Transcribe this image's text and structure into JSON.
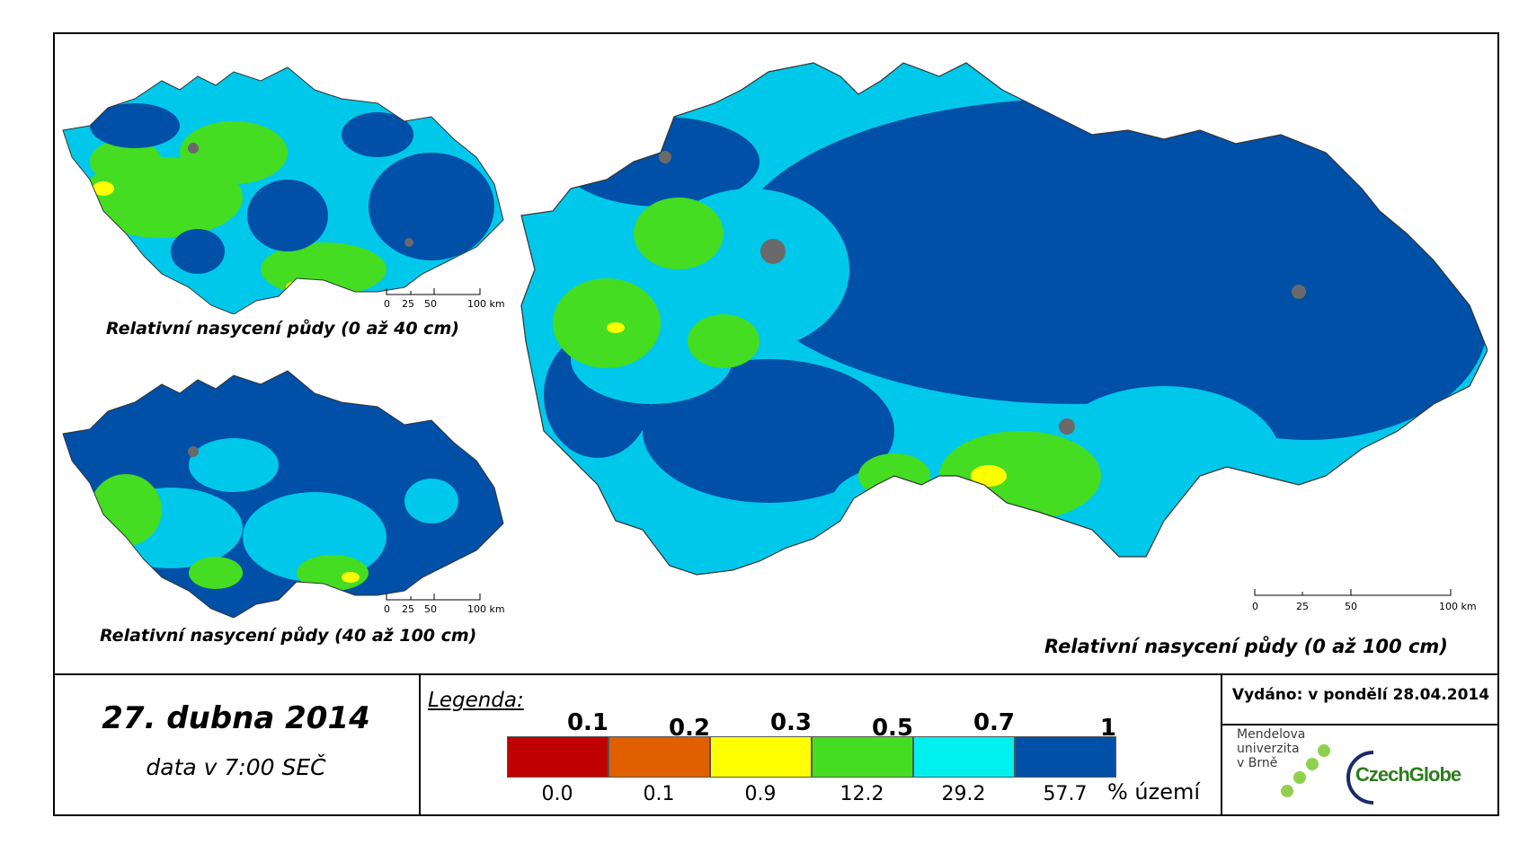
{
  "maps": {
    "small_top": {
      "title": "Relativní nasycení půdy (0 až 40 cm)",
      "scale": [
        "0",
        "25",
        "50",
        "100 km"
      ]
    },
    "small_bottom": {
      "title": "Relativní nasycení půdy (40 až 100 cm)",
      "scale": [
        "0",
        "25",
        "50",
        "100 km"
      ]
    },
    "large": {
      "title": "Relativní nasycení půdy (0 až 100 cm)",
      "scale": [
        "0",
        "25",
        "50",
        "100 km"
      ]
    }
  },
  "date": {
    "main": "27. dubna 2014",
    "sub": "data v 7:00 SEČ"
  },
  "legend": {
    "title": "Legenda:",
    "thresholds": [
      "0.1",
      "0.2",
      "0.3",
      "0.5",
      "0.7",
      "1"
    ],
    "classes": [
      {
        "color": "#c00000",
        "percent": "0.0"
      },
      {
        "color": "#e06000",
        "percent": "0.1"
      },
      {
        "color": "#ffff00",
        "percent": "0.9"
      },
      {
        "color": "#44dd22",
        "percent": "12.2"
      },
      {
        "color": "#00f0f0",
        "percent": "29.2"
      },
      {
        "color": "#0050a8",
        "percent": "57.7"
      }
    ],
    "unit": "% území"
  },
  "issued": "Vydáno: v pondělí 28.04.2014",
  "logos": {
    "mendel": {
      "line1": "Mendelova",
      "line2": "univerzita",
      "line3": "v Brně"
    },
    "czechglobe": "CzechGlobe"
  }
}
